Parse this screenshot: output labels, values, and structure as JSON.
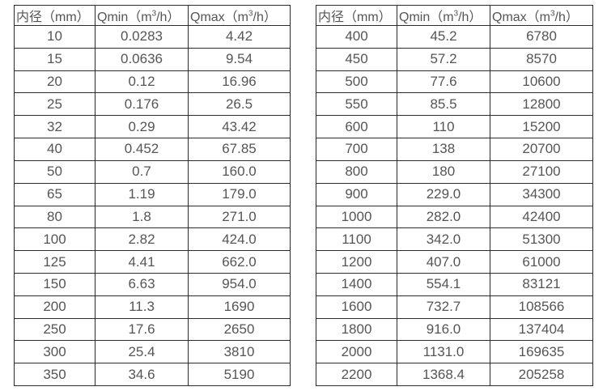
{
  "page": {
    "background": "#ffffff",
    "border_color": "#2b2b2b",
    "text_color": "#555555"
  },
  "tables": [
    {
      "name": "flow-table-small-diameters",
      "headers": [
        "内径（mm）",
        "Qmin（m³/h）",
        "Qmax（m³/h）"
      ],
      "rows": [
        [
          "10",
          "0.0283",
          "4.42"
        ],
        [
          "15",
          "0.0636",
          "9.54"
        ],
        [
          "20",
          "0.12",
          "16.96"
        ],
        [
          "25",
          "0.176",
          "26.5"
        ],
        [
          "32",
          "0.29",
          "43.42"
        ],
        [
          "40",
          "0.452",
          "67.85"
        ],
        [
          "50",
          "0.7",
          "160.0"
        ],
        [
          "65",
          "1.19",
          "179.0"
        ],
        [
          "80",
          "1.8",
          "271.0"
        ],
        [
          "100",
          "2.82",
          "424.0"
        ],
        [
          "125",
          "4.41",
          "662.0"
        ],
        [
          "150",
          "6.63",
          "954.0"
        ],
        [
          "200",
          "11.3",
          "1690"
        ],
        [
          "250",
          "17.6",
          "2650"
        ],
        [
          "300",
          "25.4",
          "3810"
        ],
        [
          "350",
          "34.6",
          "5190"
        ]
      ]
    },
    {
      "name": "flow-table-large-diameters",
      "headers": [
        "内径（mm）",
        "Qmin（m³/h）",
        "Qmax（m³/h）"
      ],
      "rows": [
        [
          "400",
          "45.2",
          "6780"
        ],
        [
          "450",
          "57.2",
          "8570"
        ],
        [
          "500",
          "77.6",
          "10600"
        ],
        [
          "550",
          "85.5",
          "12800"
        ],
        [
          "600",
          "110",
          "15200"
        ],
        [
          "700",
          "138",
          "20700"
        ],
        [
          "800",
          "180",
          "27100"
        ],
        [
          "900",
          "229.0",
          "34300"
        ],
        [
          "1000",
          "282.0",
          "42400"
        ],
        [
          "1100",
          "342.0",
          "51300"
        ],
        [
          "1200",
          "407.0",
          "61000"
        ],
        [
          "1400",
          "554.1",
          "83121"
        ],
        [
          "1600",
          "732.7",
          "108566"
        ],
        [
          "1800",
          "916.0",
          "137404"
        ],
        [
          "2000",
          "1131.0",
          "169635"
        ],
        [
          "2200",
          "1368.4",
          "205258"
        ]
      ]
    }
  ]
}
